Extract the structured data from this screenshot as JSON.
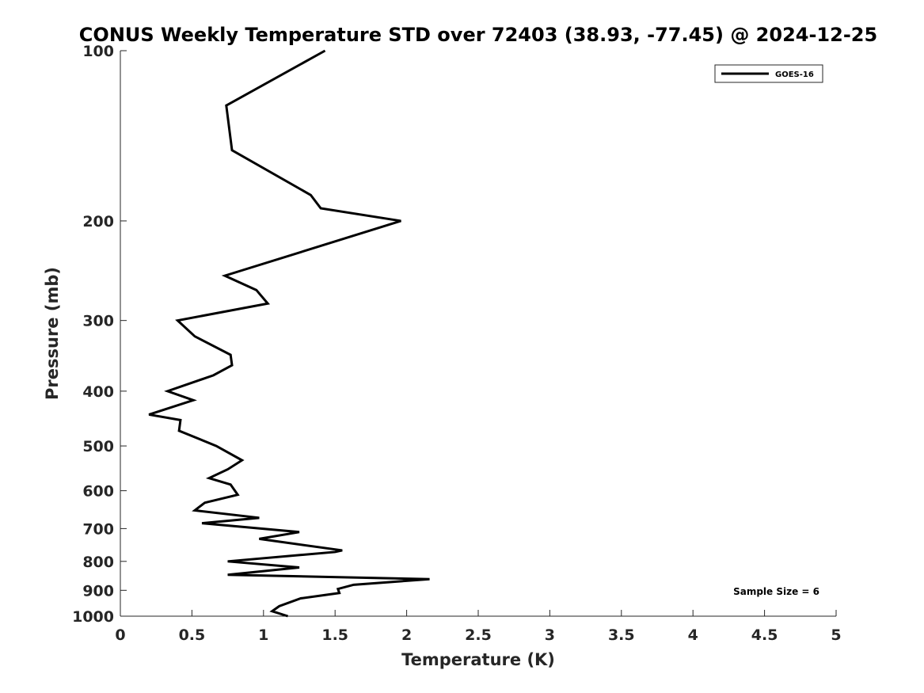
{
  "chart_data": {
    "type": "line",
    "title": "CONUS Weekly Temperature STD over 72403 (38.93, -77.45) @ 2024-12-25",
    "xlabel": "Temperature (K)",
    "ylabel": "Pressure (mb)",
    "xlim": [
      0,
      5
    ],
    "ylim": [
      100,
      1000
    ],
    "yscale": "log",
    "y_reversed": true,
    "xticks": [
      "0",
      "0.5",
      "1",
      "1.5",
      "2",
      "2.5",
      "3",
      "3.5",
      "4",
      "4.5",
      "5"
    ],
    "yticks": [
      "100",
      "200",
      "300",
      "400",
      "500",
      "600",
      "700",
      "800",
      "900",
      "1000"
    ],
    "grid": false,
    "legend": {
      "position": "top-right",
      "entries": [
        "GOES-16"
      ]
    },
    "annotation": "Sample Size = 6",
    "series": [
      {
        "name": "GOES-16",
        "color": "#000000",
        "points": [
          [
            1.43,
            100
          ],
          [
            0.74,
            125
          ],
          [
            0.78,
            150
          ],
          [
            1.33,
            180
          ],
          [
            1.4,
            190
          ],
          [
            1.96,
            200
          ],
          [
            0.73,
            250
          ],
          [
            0.95,
            265
          ],
          [
            1.03,
            280
          ],
          [
            0.4,
            300
          ],
          [
            0.52,
            320
          ],
          [
            0.77,
            345
          ],
          [
            0.78,
            360
          ],
          [
            0.65,
            375
          ],
          [
            0.33,
            400
          ],
          [
            0.51,
            415
          ],
          [
            0.2,
            440
          ],
          [
            0.42,
            450
          ],
          [
            0.41,
            470
          ],
          [
            0.67,
            500
          ],
          [
            0.85,
            530
          ],
          [
            0.75,
            550
          ],
          [
            0.62,
            570
          ],
          [
            0.77,
            585
          ],
          [
            0.82,
            610
          ],
          [
            0.59,
            630
          ],
          [
            0.52,
            650
          ],
          [
            0.97,
            670
          ],
          [
            0.57,
            685
          ],
          [
            1.25,
            710
          ],
          [
            0.97,
            730
          ],
          [
            1.55,
            765
          ],
          [
            1.5,
            770
          ],
          [
            0.75,
            800
          ],
          [
            1.25,
            820
          ],
          [
            0.75,
            845
          ],
          [
            2.16,
            860
          ],
          [
            1.63,
            880
          ],
          [
            1.52,
            895
          ],
          [
            1.53,
            910
          ],
          [
            1.26,
            930
          ],
          [
            1.11,
            960
          ],
          [
            1.06,
            980
          ],
          [
            1.17,
            1000
          ]
        ]
      }
    ]
  }
}
